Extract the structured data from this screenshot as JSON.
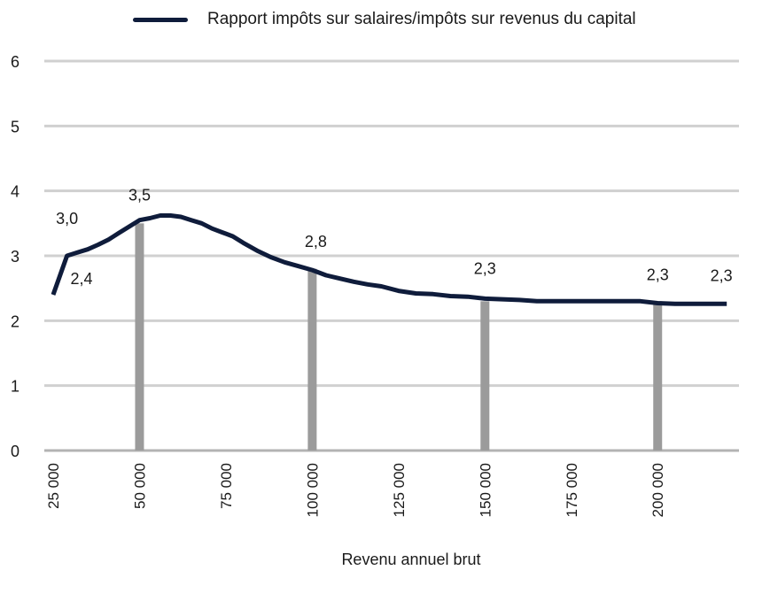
{
  "chart_data": {
    "type": "line",
    "xlabel": "Revenu annuel brut",
    "ylabel": "",
    "xlim": [
      25000,
      222000
    ],
    "ylim": [
      0,
      6
    ],
    "grid": true,
    "legend": "top",
    "yticks": [
      {
        "value": 0,
        "label": "0"
      },
      {
        "value": 1,
        "label": "1"
      },
      {
        "value": 2,
        "label": "2"
      },
      {
        "value": 3,
        "label": "3"
      },
      {
        "value": 4,
        "label": "4"
      },
      {
        "value": 5,
        "label": "5"
      },
      {
        "value": 6,
        "label": "6"
      }
    ],
    "xticks": [
      {
        "value": 25000,
        "label": "25 000"
      },
      {
        "value": 50000,
        "label": "50 000"
      },
      {
        "value": 75000,
        "label": "75 000"
      },
      {
        "value": 100000,
        "label": "100 000"
      },
      {
        "value": 125000,
        "label": "125 000"
      },
      {
        "value": 150000,
        "label": "150 000"
      },
      {
        "value": 175000,
        "label": "175 000"
      },
      {
        "value": 200000,
        "label": "200 000"
      }
    ],
    "series": [
      {
        "name": "Rapport impôts sur salaires/impôts sur revenus du capital",
        "color": "#0f1c3b",
        "x": [
          25000,
          29000,
          32000,
          35000,
          38000,
          41000,
          44000,
          47000,
          50000,
          53000,
          56000,
          59000,
          62000,
          65000,
          68000,
          71000,
          74000,
          77000,
          80000,
          84000,
          88000,
          92000,
          96000,
          100000,
          104000,
          108000,
          112000,
          116000,
          120000,
          125000,
          130000,
          135000,
          140000,
          145000,
          150000,
          155000,
          160000,
          165000,
          170000,
          175000,
          180000,
          185000,
          190000,
          195000,
          200000,
          205000,
          210000,
          215000,
          220000
        ],
        "values": [
          2.4,
          3.0,
          3.05,
          3.1,
          3.17,
          3.25,
          3.35,
          3.45,
          3.55,
          3.58,
          3.62,
          3.62,
          3.6,
          3.55,
          3.5,
          3.42,
          3.36,
          3.3,
          3.2,
          3.08,
          2.98,
          2.9,
          2.84,
          2.78,
          2.7,
          2.65,
          2.6,
          2.56,
          2.53,
          2.46,
          2.42,
          2.41,
          2.38,
          2.37,
          2.34,
          2.33,
          2.32,
          2.3,
          2.3,
          2.3,
          2.3,
          2.3,
          2.3,
          2.3,
          2.27,
          2.26,
          2.26,
          2.26,
          2.26
        ]
      }
    ],
    "markers": [
      {
        "x": 50000,
        "value": 3.5
      },
      {
        "x": 100000,
        "value": 2.8
      },
      {
        "x": 150000,
        "value": 2.3
      },
      {
        "x": 200000,
        "value": 2.3
      }
    ],
    "annotations": [
      {
        "x": 25000,
        "y": 2.4,
        "label": "2,4"
      },
      {
        "x": 29000,
        "y": 3.0,
        "label": "3,0"
      },
      {
        "x": 50000,
        "y": 3.55,
        "label": "3,5"
      },
      {
        "x": 100000,
        "y": 2.78,
        "label": "2,8"
      },
      {
        "x": 150000,
        "y": 2.34,
        "label": "2,3"
      },
      {
        "x": 200000,
        "y": 2.27,
        "label": "2,3"
      },
      {
        "x": 220000,
        "y": 2.26,
        "label": "2,3"
      }
    ]
  }
}
